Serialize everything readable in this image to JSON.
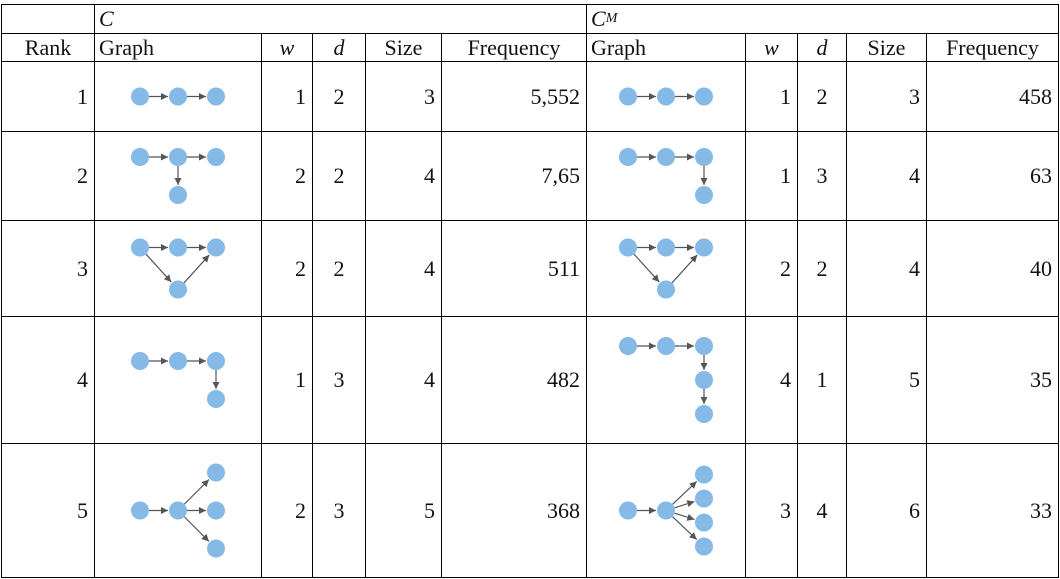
{
  "groups": {
    "c_label": "C",
    "cm_label_main": "C",
    "cm_label_sub": "M"
  },
  "headers": {
    "rank": "Rank",
    "graph": "Graph",
    "w": "w",
    "d": "d",
    "size": "Size",
    "frequency": "Frequency"
  },
  "rows": [
    {
      "rank": "1",
      "c": {
        "w": "1",
        "d": "2",
        "size": "3",
        "freq": "5,552",
        "graph": "chain3"
      },
      "cm": {
        "w": "1",
        "d": "2",
        "size": "3",
        "freq": "458",
        "graph": "chain3"
      }
    },
    {
      "rank": "2",
      "c": {
        "w": "2",
        "d": "2",
        "size": "4",
        "freq": "7,65",
        "graph": "t4"
      },
      "cm": {
        "w": "1",
        "d": "3",
        "size": "4",
        "freq": "63",
        "graph": "l4"
      }
    },
    {
      "rank": "3",
      "c": {
        "w": "2",
        "d": "2",
        "size": "4",
        "freq": "511",
        "graph": "v4"
      },
      "cm": {
        "w": "2",
        "d": "2",
        "size": "4",
        "freq": "40",
        "graph": "v4"
      }
    },
    {
      "rank": "4",
      "c": {
        "w": "1",
        "d": "3",
        "size": "4",
        "freq": "482",
        "graph": "l4"
      },
      "cm": {
        "w": "4",
        "d": "1",
        "size": "5",
        "freq": "35",
        "graph": "l5"
      }
    },
    {
      "rank": "5",
      "c": {
        "w": "2",
        "d": "3",
        "size": "5",
        "freq": "368",
        "graph": "fan3"
      },
      "cm": {
        "w": "3",
        "d": "4",
        "size": "6",
        "freq": "33",
        "graph": "fan4"
      }
    }
  ],
  "colors": {
    "node": "#85b9e6",
    "edge": "#555555",
    "rule": "#000000"
  }
}
